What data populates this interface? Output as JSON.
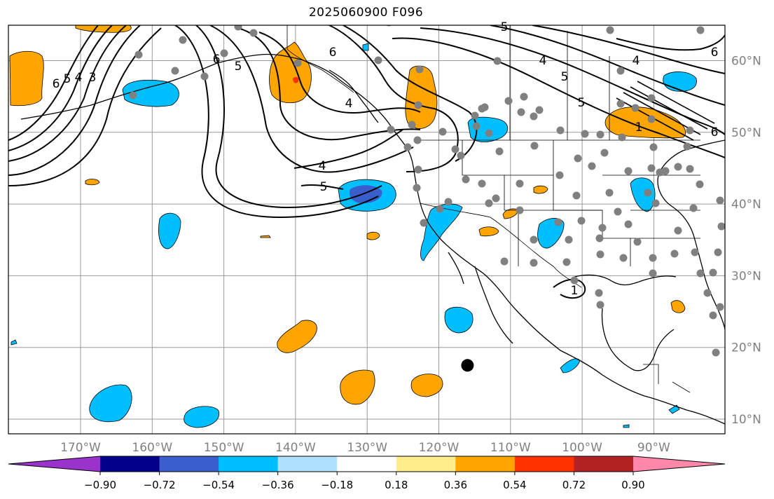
{
  "title": "2025060900 F096",
  "map": {
    "projection": "PlateCarree",
    "lon_range": [
      -180,
      -80
    ],
    "lat_range": [
      8,
      65
    ],
    "gridlines": true,
    "lon_labels": [
      "170°W",
      "160°W",
      "150°W",
      "140°W",
      "130°W",
      "120°W",
      "110°W",
      "100°W",
      "90°W"
    ],
    "lat_labels": [
      "10°N",
      "20°N",
      "30°N",
      "40°N",
      "50°N",
      "60°N"
    ],
    "contour_labels": [
      "6",
      "5",
      "4",
      "3",
      "6",
      "5",
      "4",
      "6",
      "5",
      "4",
      "5",
      "5",
      "1",
      "6",
      "4",
      "5",
      "6",
      "4",
      "1"
    ],
    "marker": {
      "lon": -116,
      "lat": 17.5,
      "symbol": "large-black-dot"
    }
  },
  "colorbar": {
    "colors": [
      "#9933cc",
      "#00008b",
      "#3a5fcd",
      "#00bfff",
      "#b0e2ff",
      "#ffffff",
      "#ffec8b",
      "#ffa500",
      "#ff3300",
      "#b22222",
      "#ff88aa"
    ],
    "tick_labels": [
      "−0.90",
      "−0.72",
      "−0.54",
      "−0.36",
      "−0.18",
      "0.18",
      "0.36",
      "0.54",
      "0.72",
      "0.90"
    ],
    "extend": "both"
  }
}
